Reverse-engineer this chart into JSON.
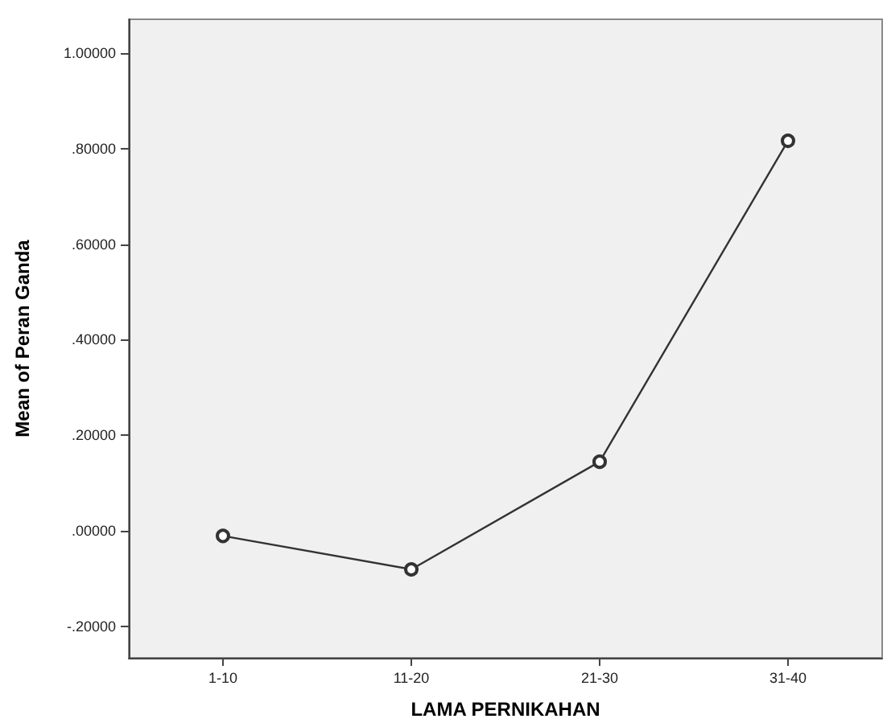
{
  "chart_data": {
    "type": "line",
    "xlabel": "LAMA PERNIKAHAN",
    "ylabel": "Mean of Peran Ganda",
    "categories": [
      "1-10",
      "11-20",
      "21-30",
      "31-40"
    ],
    "series": [
      {
        "color": "#333333",
        "values": [
          -0.01,
          -0.08,
          0.145,
          0.816
        ]
      }
    ],
    "ylim": [
      -0.265,
      1.07
    ],
    "yticks": [
      {
        "value": -0.2,
        "label": "-.20000"
      },
      {
        "value": 0,
        "label": ".00000"
      },
      {
        "value": 0.2,
        "label": ".20000"
      },
      {
        "value": 0.4,
        "label": ".40000"
      },
      {
        "value": 0.6,
        "label": ".60000"
      },
      {
        "value": 0.8,
        "label": ".80000"
      },
      {
        "value": 1,
        "label": "1.00000"
      }
    ],
    "grid": false,
    "marker": "circle",
    "line_style": "solid"
  }
}
